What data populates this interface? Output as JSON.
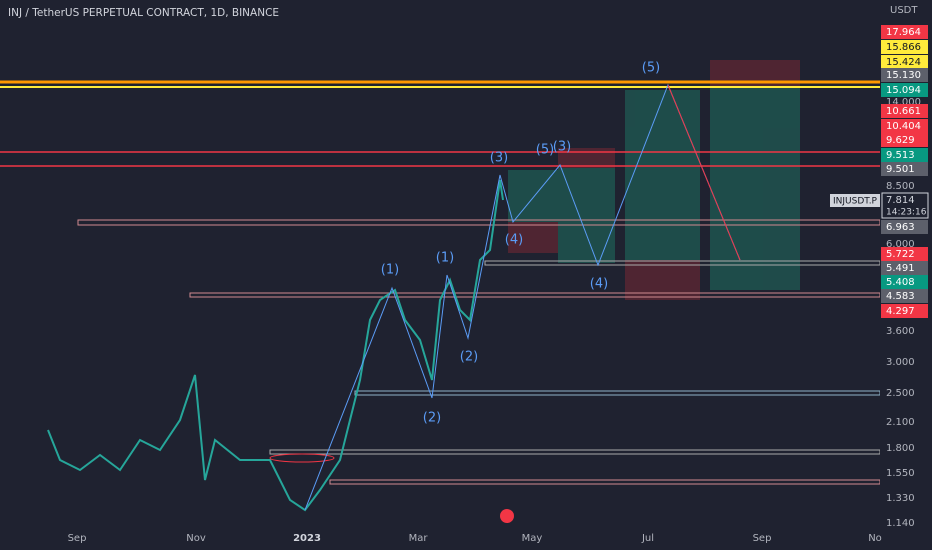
{
  "header": {
    "title": "INJ / TetherUS PERPETUAL CONTRACT, 1D, BINANCE"
  },
  "price_axis": {
    "unit": "USDT",
    "labels": [
      {
        "text": "17.964",
        "style": "red"
      },
      {
        "text": "15.866",
        "style": "yellow"
      },
      {
        "text": "15.424",
        "style": "yellow"
      },
      {
        "text": "15.130",
        "style": "gray"
      },
      {
        "text": "15.094",
        "style": "green"
      },
      {
        "text": "14.000",
        "style": "plain"
      },
      {
        "text": "10.661",
        "style": "red"
      },
      {
        "text": "10.404",
        "style": "red"
      },
      {
        "text": "9.629",
        "style": "red"
      },
      {
        "text": "9.513",
        "style": "green"
      },
      {
        "text": "9.501",
        "style": "gray"
      },
      {
        "text": "8.500",
        "style": "plain"
      },
      {
        "text": "6.963",
        "style": "gray"
      },
      {
        "text": "6.000",
        "style": "plain"
      },
      {
        "text": "5.722",
        "style": "red"
      },
      {
        "text": "5.491",
        "style": "gray"
      },
      {
        "text": "5.408",
        "style": "green"
      },
      {
        "text": "4.583",
        "style": "gray"
      },
      {
        "text": "4.297",
        "style": "red"
      },
      {
        "text": "3.600",
        "style": "plain"
      },
      {
        "text": "3.000",
        "style": "plain"
      },
      {
        "text": "2.500",
        "style": "plain"
      },
      {
        "text": "2.100",
        "style": "plain"
      },
      {
        "text": "1.800",
        "style": "plain"
      },
      {
        "text": "1.550",
        "style": "plain"
      },
      {
        "text": "1.330",
        "style": "plain"
      },
      {
        "text": "1.140",
        "style": "plain"
      }
    ]
  },
  "symbol": {
    "name": "INJUSDT.P",
    "price": "7.814",
    "countdown": "14:23:16"
  },
  "time_axis": [
    "Sep",
    "Nov",
    "2023",
    "Mar",
    "May",
    "Jul",
    "Sep",
    "No"
  ],
  "waves": [
    "(5)",
    "(3)",
    "(5)",
    "(3)",
    "(4)",
    "(4)",
    "(1)",
    "(1)",
    "(2)",
    "(2)"
  ]
}
